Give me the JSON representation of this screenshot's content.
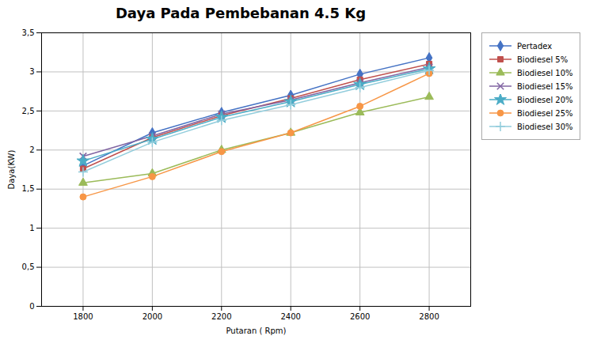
{
  "chart_data": {
    "type": "line",
    "title": "Daya Pada Pembebanan 4.5 Kg",
    "xlabel": "Putaran ( Rpm)",
    "ylabel": "Daya(KW)",
    "x": [
      1800,
      2000,
      2200,
      2400,
      2600,
      2800
    ],
    "series": [
      {
        "name": "Pertadex",
        "color": "#4472C4",
        "marker": "diamond",
        "values": [
          1.8,
          2.22,
          2.48,
          2.7,
          2.97,
          3.18
        ]
      },
      {
        "name": "Biodiesel 5%",
        "color": "#C0504D",
        "marker": "square",
        "values": [
          1.76,
          2.16,
          2.44,
          2.66,
          2.9,
          3.1
        ]
      },
      {
        "name": "Biodiesel 10%",
        "color": "#9BBB59",
        "marker": "triangle",
        "values": [
          1.58,
          1.7,
          2.0,
          2.22,
          2.48,
          2.68
        ]
      },
      {
        "name": "Biodiesel 15%",
        "color": "#8064A2",
        "marker": "times",
        "values": [
          1.92,
          2.18,
          2.46,
          2.64,
          2.86,
          3.06
        ]
      },
      {
        "name": "Biodiesel 20%",
        "color": "#4BACC6",
        "marker": "star",
        "values": [
          1.86,
          2.14,
          2.42,
          2.62,
          2.84,
          3.04
        ]
      },
      {
        "name": "Biodiesel 25%",
        "color": "#F79646",
        "marker": "circle",
        "values": [
          1.4,
          1.66,
          1.98,
          2.22,
          2.56,
          2.98
        ]
      },
      {
        "name": "Biodiesel 30%",
        "color": "#92CDDC",
        "marker": "plus",
        "values": [
          1.72,
          2.1,
          2.38,
          2.58,
          2.8,
          3.02
        ]
      }
    ],
    "xlim": [
      1680,
      2920
    ],
    "xticks": [
      1800,
      2000,
      2200,
      2400,
      2600,
      2800
    ],
    "ylim": [
      0,
      3.5
    ],
    "yticks": [
      0,
      {
        "value": 0.5,
        "label": "0,5"
      },
      1,
      {
        "value": 1.5,
        "label": "1,5"
      },
      2,
      {
        "value": 2.5,
        "label": "2,5"
      },
      3,
      {
        "value": 3.5,
        "label": "3,5"
      }
    ],
    "grid": true,
    "legend": "right"
  }
}
